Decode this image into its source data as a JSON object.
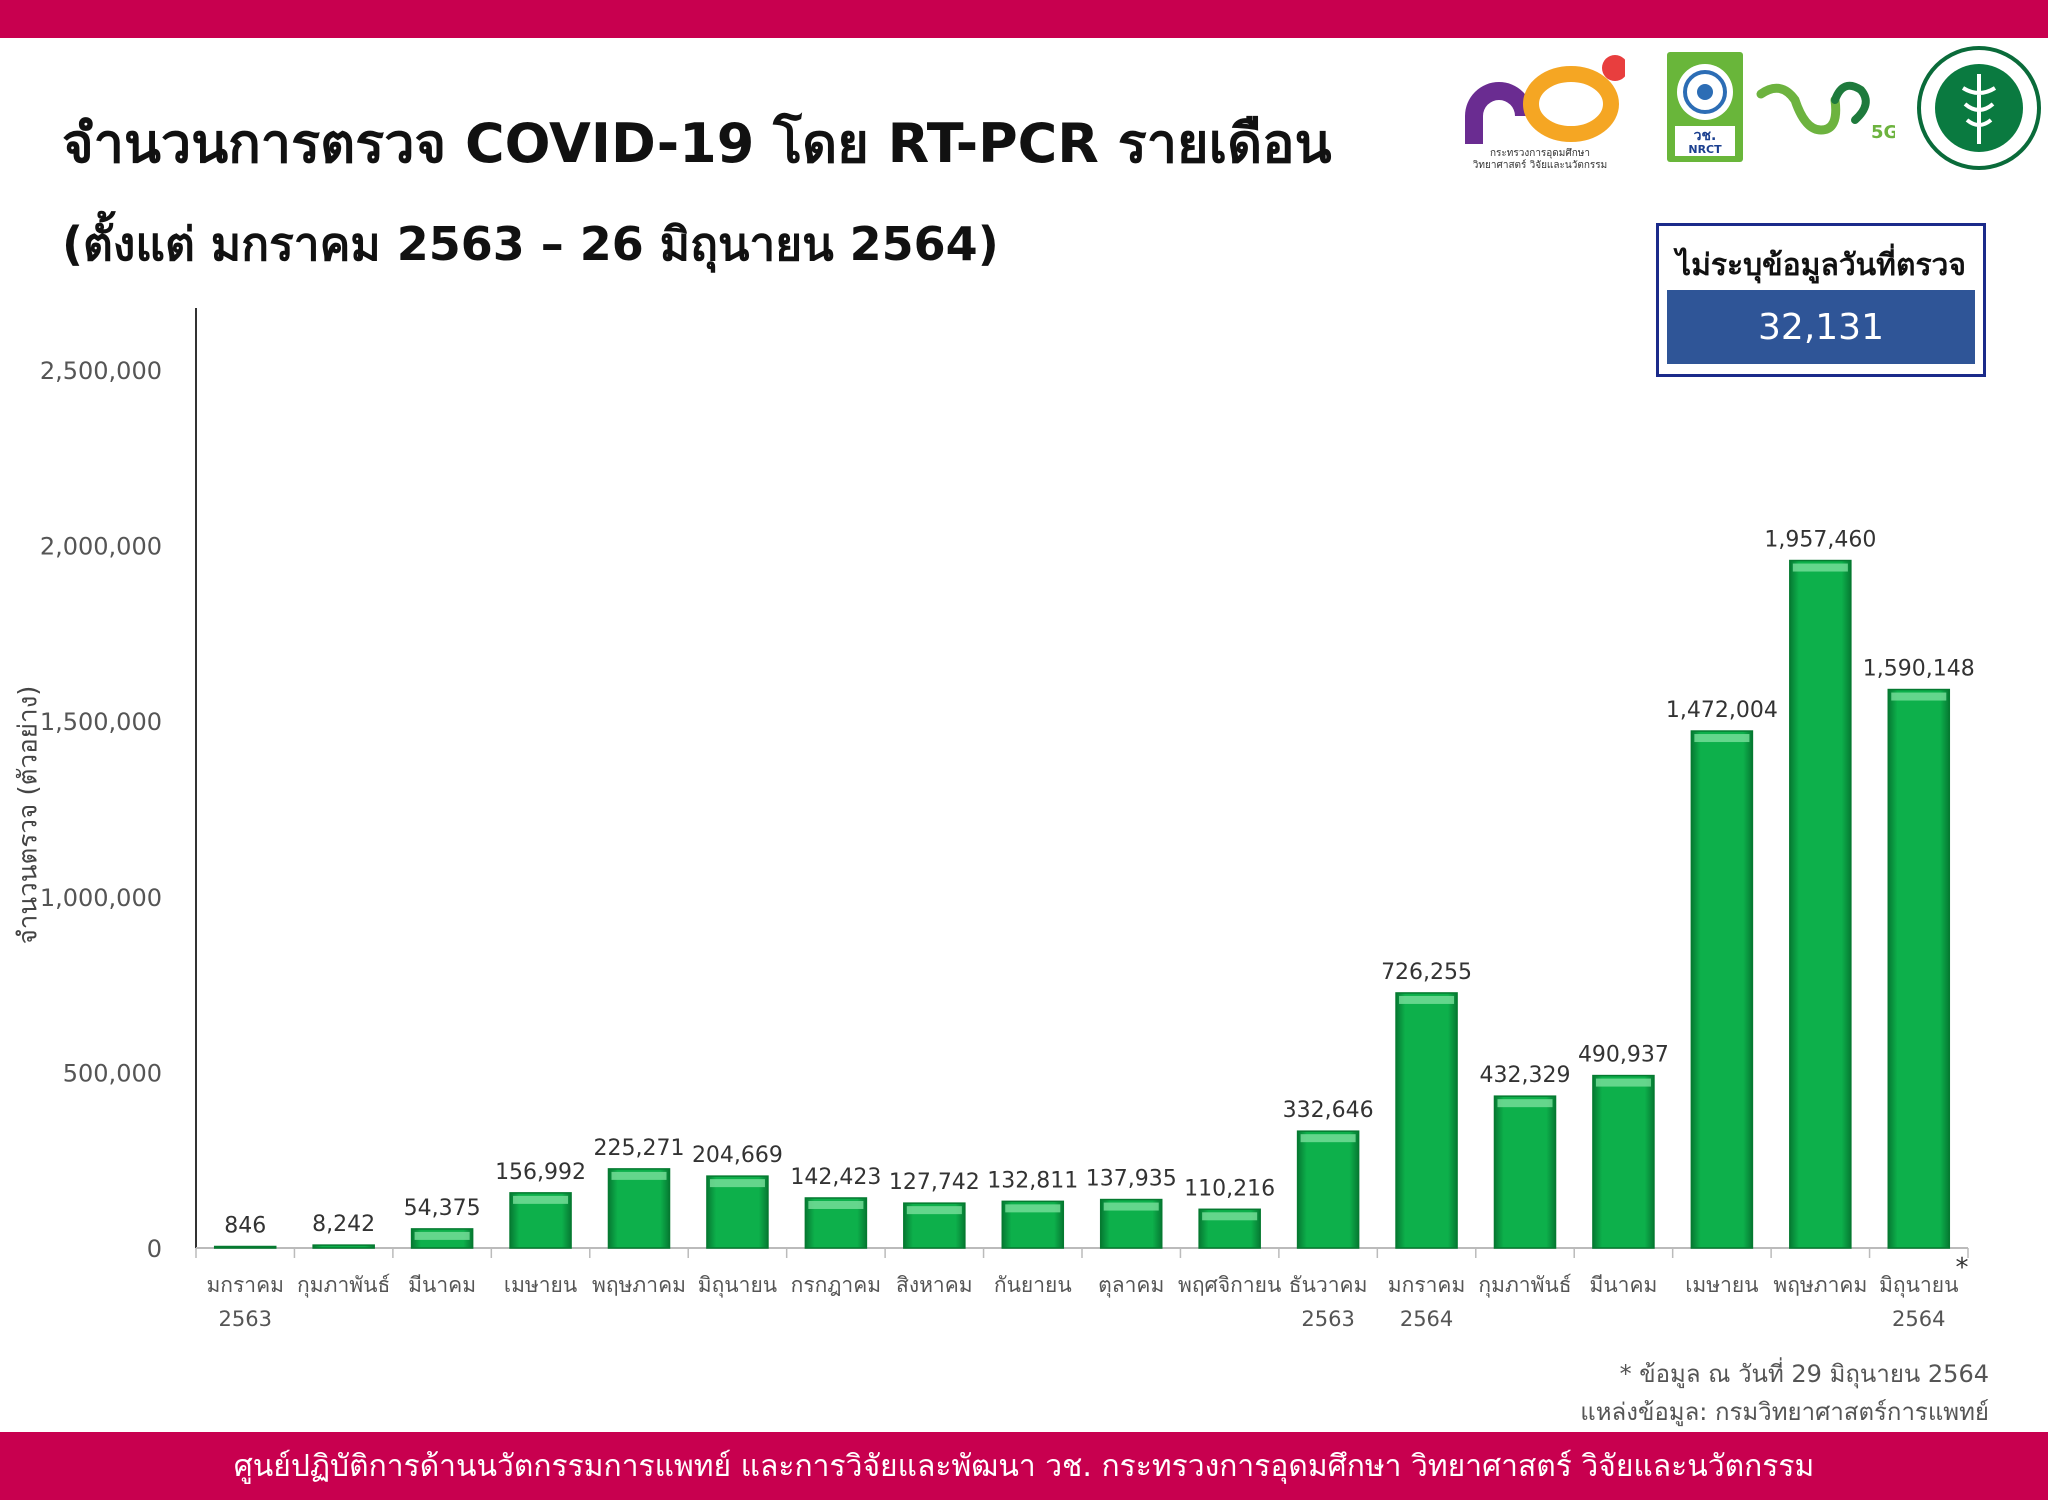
{
  "header": {
    "title": "จำนวนการตรวจ COVID-19 โดย RT-PCR รายเดือน",
    "subtitle": "(ตั้งแต่ มกราคม 2563 – 26 มิถุนายน 2564)"
  },
  "logos": {
    "mhesi_text_line1": "กระทรวงการอุดมศึกษา",
    "mhesi_text_line2": "วิทยาศาสตร์ วิจัยและนวัตกรรม",
    "nrct_abbr": "วช.",
    "nrct_name": "NRCT",
    "vch_badge": "5G"
  },
  "infobox": {
    "label": "ไม่ระบุข้อมูลวันที่ตรวจ",
    "value": "32,131"
  },
  "chart_data": {
    "type": "bar",
    "ylabel": "จำนวนตรวจ (ตัวอย่าง)",
    "ylim": [
      0,
      2500000
    ],
    "yticks": [
      0,
      500000,
      1000000,
      1500000,
      2000000,
      2500000
    ],
    "ytick_labels": [
      "0",
      "500,000",
      "1,000,000",
      "1,500,000",
      "2,000,000",
      "2,500,000"
    ],
    "categories": [
      [
        "มกราคม",
        "2563"
      ],
      [
        "กุมภาพันธ์"
      ],
      [
        "มีนาคม"
      ],
      [
        "เมษายน"
      ],
      [
        "พฤษภาคม"
      ],
      [
        "มิถุนายน"
      ],
      [
        "กรกฎาคม"
      ],
      [
        "สิงหาคม"
      ],
      [
        "กันยายน"
      ],
      [
        "ตุลาคม"
      ],
      [
        "พฤศจิกายน"
      ],
      [
        "ธันวาคม",
        "2563"
      ],
      [
        "มกราคม",
        "2564"
      ],
      [
        "กุมภาพันธ์"
      ],
      [
        "มีนาคม"
      ],
      [
        "เมษายน"
      ],
      [
        "พฤษภาคม"
      ],
      [
        "มิถุนายน",
        "2564"
      ]
    ],
    "values": [
      846,
      8242,
      54375,
      156992,
      225271,
      204669,
      142423,
      127742,
      132811,
      137935,
      110216,
      332646,
      726255,
      432329,
      490937,
      1472004,
      1957460,
      1590148
    ],
    "value_labels": [
      "846",
      "8,242",
      "54,375",
      "156,992",
      "225,271",
      "204,669",
      "142,423",
      "127,742",
      "132,811",
      "137,935",
      "110,216",
      "332,646",
      "726,255",
      "432,329",
      "490,937",
      "1,472,004",
      "1,957,460",
      "1,590,148"
    ],
    "last_category_marker": "*",
    "bar_color": "#0db04b",
    "grid": false
  },
  "footnotes": {
    "note": "* ข้อมูล ณ วันที่ 29 มิถุนายน 2564",
    "source": "แหล่งข้อมูล: กรมวิทยาศาสตร์การแพทย์"
  },
  "footer": {
    "text": "ศูนย์ปฏิบัติการด้านนวัตกรรมการแพทย์ และการวิจัยและพัฒนา วช. กระทรวงการอุดมศึกษา วิทยาศาสตร์ วิจัยและนวัตกรรม"
  }
}
